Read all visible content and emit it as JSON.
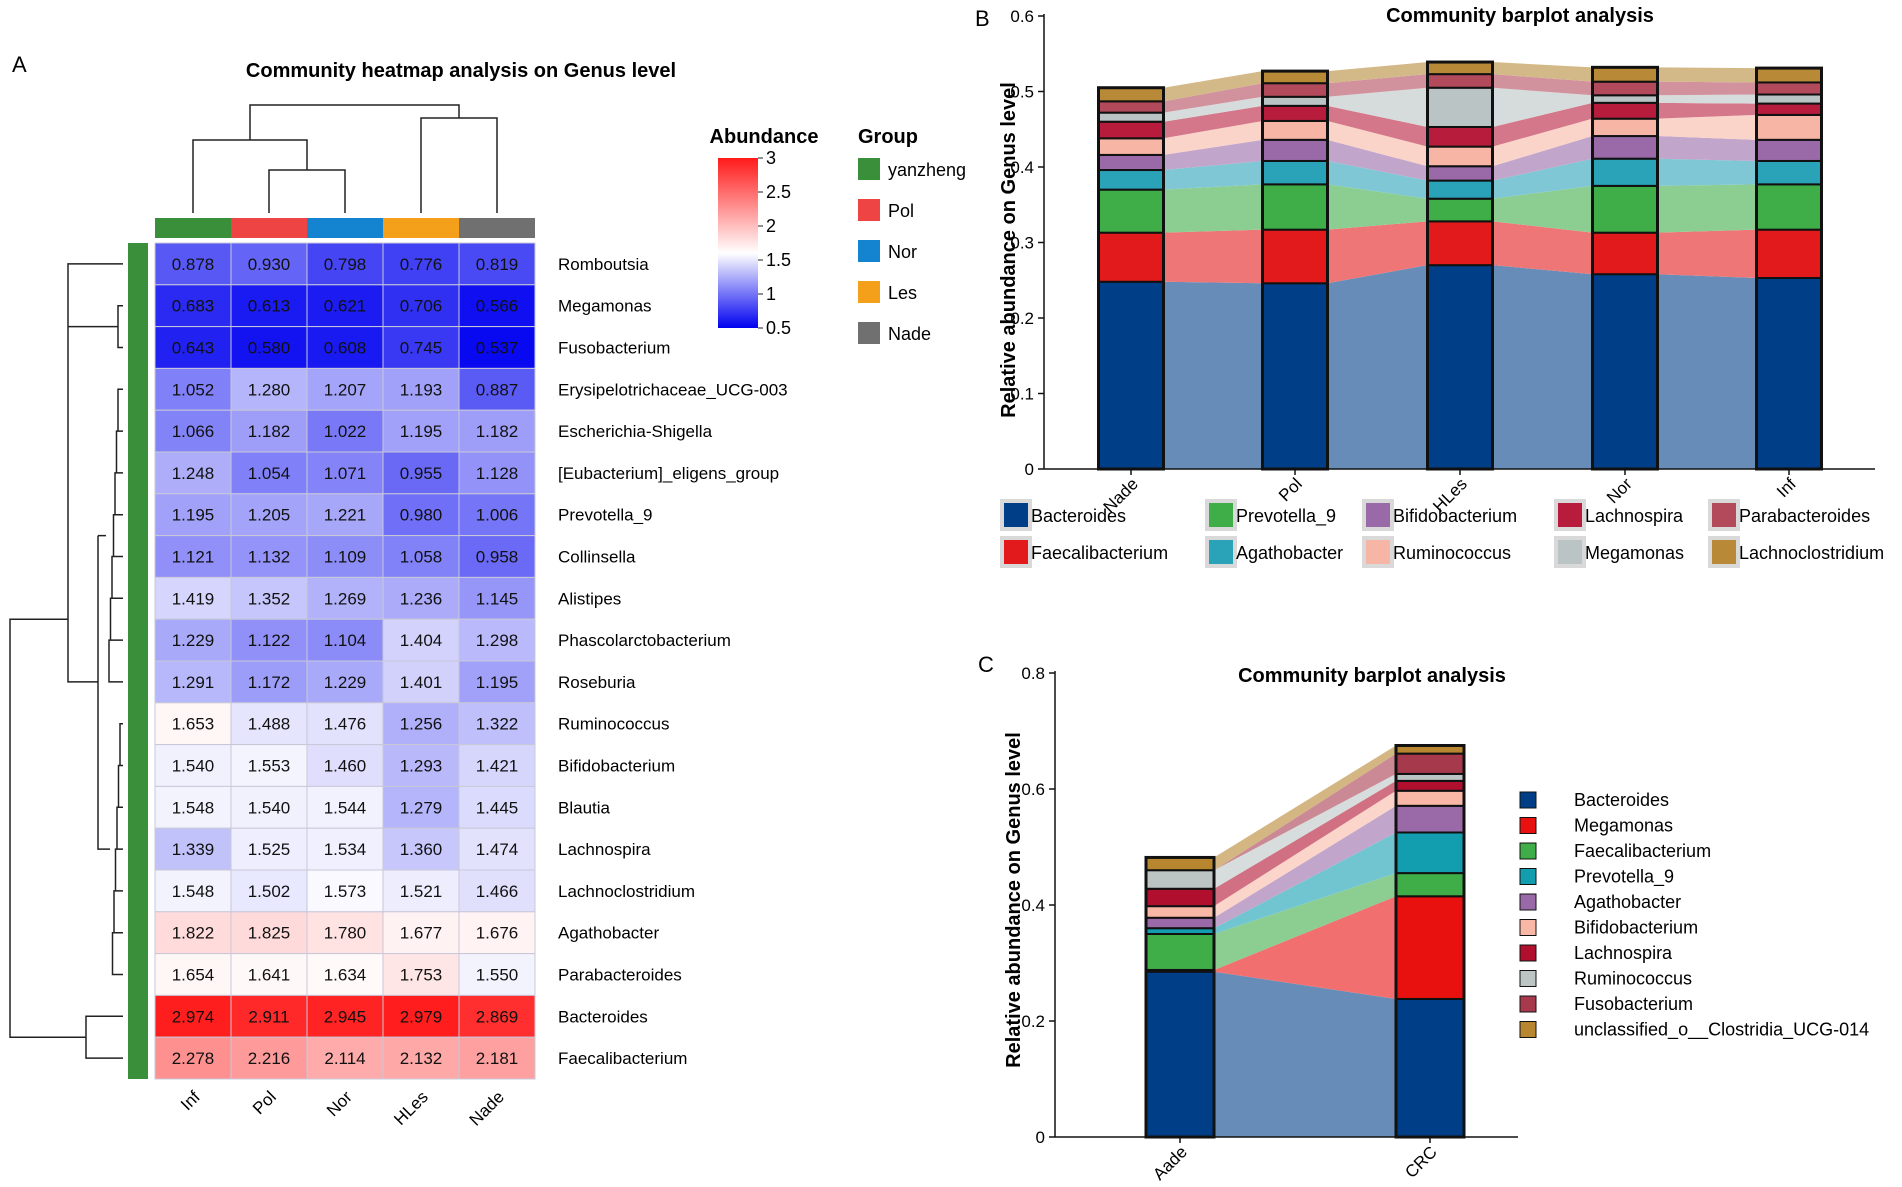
{
  "panels": {
    "a": {
      "letter": "A",
      "title": "Community heatmap analysis on Genus level",
      "columns": [
        "Inf",
        "Pol",
        "Nor",
        "HLes",
        "Nade"
      ],
      "column_group_colors": [
        "#3a8f3a",
        "#ee4444",
        "#1483d0",
        "#f5a01a",
        "#707070"
      ],
      "rows": [
        "Romboutsia",
        "Megamonas",
        "Fusobacterium",
        "Erysipelotrichaceae_UCG-003",
        "Escherichia-Shigella",
        "[Eubacterium]_eligens_group",
        "Prevotella_9",
        "Collinsella",
        "Alistipes",
        "Phascolarctobacterium",
        "Roseburia",
        "Ruminococcus",
        "Bifidobacterium",
        "Blautia",
        "Lachnospira",
        "Lachnoclostridium",
        "Agathobacter",
        "Parabacteroides",
        "Bacteroides",
        "Faecalibacterium"
      ],
      "cells": [
        [
          "0.878",
          "0.930",
          "0.798",
          "0.776",
          "0.819"
        ],
        [
          "0.683",
          "0.613",
          "0.621",
          "0.706",
          "0.566"
        ],
        [
          "0.643",
          "0.580",
          "0.608",
          "0.745",
          "0.537"
        ],
        [
          "1.052",
          "1.280",
          "1.207",
          "1.193",
          "0.887"
        ],
        [
          "1.066",
          "1.182",
          "1.022",
          "1.195",
          "1.182"
        ],
        [
          "1.248",
          "1.054",
          "1.071",
          "0.955",
          "1.128"
        ],
        [
          "1.195",
          "1.205",
          "1.221",
          "0.980",
          "1.006"
        ],
        [
          "1.121",
          "1.132",
          "1.109",
          "1.058",
          "0.958"
        ],
        [
          "1.419",
          "1.352",
          "1.269",
          "1.236",
          "1.145"
        ],
        [
          "1.229",
          "1.122",
          "1.104",
          "1.404",
          "1.298"
        ],
        [
          "1.291",
          "1.172",
          "1.229",
          "1.401",
          "1.195"
        ],
        [
          "1.653",
          "1.488",
          "1.476",
          "1.256",
          "1.322"
        ],
        [
          "1.540",
          "1.553",
          "1.460",
          "1.293",
          "1.421"
        ],
        [
          "1.548",
          "1.540",
          "1.544",
          "1.279",
          "1.445"
        ],
        [
          "1.339",
          "1.525",
          "1.534",
          "1.360",
          "1.474"
        ],
        [
          "1.548",
          "1.502",
          "1.573",
          "1.521",
          "1.466"
        ],
        [
          "1.822",
          "1.825",
          "1.780",
          "1.677",
          "1.676"
        ],
        [
          "1.654",
          "1.641",
          "1.634",
          "1.753",
          "1.550"
        ],
        [
          "2.974",
          "2.911",
          "2.945",
          "2.979",
          "2.869"
        ],
        [
          "2.278",
          "2.216",
          "2.114",
          "2.132",
          "2.181"
        ]
      ],
      "color_scale": {
        "title": "Abundance",
        "ticks": [
          "3",
          "2.5",
          "2",
          "1.5",
          "1",
          "0.5"
        ],
        "min": 0.5,
        "mid": 1.6,
        "max": 3,
        "low_color": "#0000f0",
        "mid_color": "#ffffff",
        "high_color": "#ff1a1a"
      },
      "group_legend": {
        "title": "Group",
        "items": [
          "yanzheng",
          "Pol",
          "Nor",
          "Les",
          "Nade"
        ],
        "colors": [
          "#3a8f3a",
          "#ee4444",
          "#1483d0",
          "#f5a01a",
          "#707070"
        ]
      },
      "row_group_color": "#3a8f3a"
    },
    "b": {
      "letter": "B",
      "title": "Community barplot analysis",
      "ylabel": "Relative abundance on Genus level",
      "ymax": 0.6,
      "yticks": [
        "0",
        "0.1",
        "0.2",
        "0.3",
        "0.4",
        "0.5",
        "0.6"
      ],
      "categories": [
        "Nade",
        "Pol",
        "HLes",
        "Nor",
        "Inf"
      ],
      "series": [
        {
          "name": "Bacteroides",
          "color": "#003f87",
          "values": [
            0.248,
            0.246,
            0.27,
            0.258,
            0.253
          ]
        },
        {
          "name": "Faecalibacterium",
          "color": "#e31a1c",
          "values": [
            0.065,
            0.071,
            0.058,
            0.055,
            0.064
          ]
        },
        {
          "name": "Prevotella_9",
          "color": "#3fae49",
          "values": [
            0.057,
            0.06,
            0.03,
            0.062,
            0.06
          ]
        },
        {
          "name": "Agathobacter",
          "color": "#2aa2b8",
          "values": [
            0.026,
            0.031,
            0.024,
            0.036,
            0.031
          ]
        },
        {
          "name": "Bifidobacterium",
          "color": "#9a69a8",
          "values": [
            0.02,
            0.028,
            0.019,
            0.03,
            0.028
          ]
        },
        {
          "name": "Ruminococcus",
          "color": "#f7b6a5",
          "values": [
            0.022,
            0.025,
            0.026,
            0.023,
            0.033
          ]
        },
        {
          "name": "Lachnospira",
          "color": "#b81c3c",
          "values": [
            0.022,
            0.02,
            0.026,
            0.021,
            0.015
          ]
        },
        {
          "name": "Megamonas",
          "color": "#bac4c4",
          "values": [
            0.012,
            0.012,
            0.052,
            0.01,
            0.012
          ]
        },
        {
          "name": "Parabacteroides",
          "color": "#b24a5c",
          "values": [
            0.015,
            0.018,
            0.018,
            0.018,
            0.016
          ]
        },
        {
          "name": "Lachnoclostridium",
          "color": "#b88a38",
          "values": [
            0.018,
            0.016,
            0.016,
            0.019,
            0.019
          ]
        }
      ]
    },
    "c": {
      "letter": "C",
      "title": "Community barplot analysis",
      "ylabel": "Relative abundance on Genus level",
      "ymax": 0.8,
      "yticks": [
        "0",
        "0.2",
        "0.4",
        "0.6",
        "0.8"
      ],
      "categories": [
        "Aade",
        "CRC"
      ],
      "series": [
        {
          "name": "Bacteroides",
          "color": "#003f87",
          "values": [
            0.285,
            0.238
          ]
        },
        {
          "name": "Megamonas",
          "color": "#e8110f",
          "values": [
            0.003,
            0.177
          ]
        },
        {
          "name": "Faecalibacterium",
          "color": "#3fae49",
          "values": [
            0.062,
            0.04
          ]
        },
        {
          "name": "Prevotella_9",
          "color": "#139eb0",
          "values": [
            0.01,
            0.07
          ]
        },
        {
          "name": "Agathobacter",
          "color": "#9a69a8",
          "values": [
            0.018,
            0.046
          ]
        },
        {
          "name": "Bifidobacterium",
          "color": "#f9b8a6",
          "values": [
            0.02,
            0.026
          ]
        },
        {
          "name": "Lachnospira",
          "color": "#b0102e",
          "values": [
            0.03,
            0.017
          ]
        },
        {
          "name": "Ruminococcus",
          "color": "#bcc4c4",
          "values": [
            0.032,
            0.012
          ]
        },
        {
          "name": "Fusobacterium",
          "color": "#a63a4c",
          "values": [
            0.0,
            0.035
          ]
        },
        {
          "name": "unclassified_o__Clostridia_UCG-014",
          "color": "#b8862f",
          "values": [
            0.022,
            0.014
          ]
        }
      ]
    }
  }
}
